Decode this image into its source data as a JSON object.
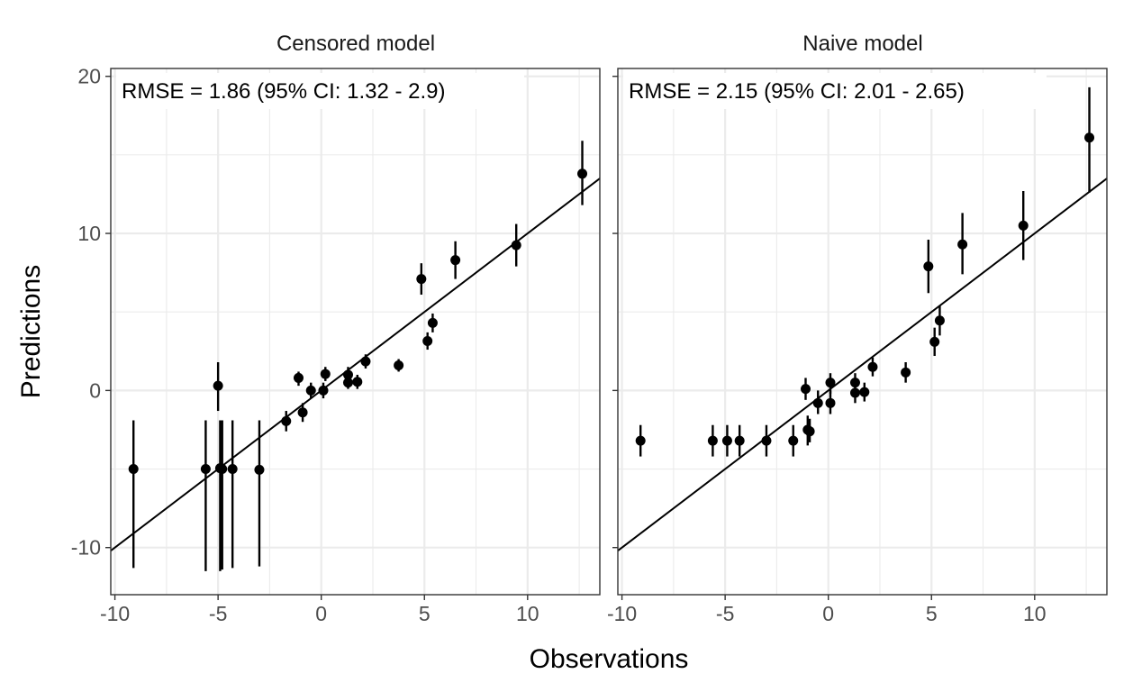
{
  "chart_data": {
    "type": "scatter",
    "xlabel": "Observations",
    "ylabel": "Predictions",
    "xlim": [
      -10.2,
      13.5
    ],
    "ylim": [
      -13,
      20.5
    ],
    "x_ticks": [
      -10,
      -5,
      0,
      5,
      10
    ],
    "y_ticks": [
      -10,
      0,
      10,
      20
    ],
    "x_tick_labels": [
      "-10",
      "-5",
      "0",
      "5",
      "10"
    ],
    "y_tick_labels": [
      "-10",
      "0",
      "10",
      "20"
    ],
    "grid": true,
    "reference_line": {
      "slope": 1,
      "intercept": 0
    },
    "panels": [
      {
        "title": "Censored model",
        "annotation": "RMSE = 1.86 (95% CI: 1.32 - 2.9)",
        "points": [
          {
            "x": -9.1,
            "y": -5.0,
            "lo": -11.3,
            "hi": -1.9
          },
          {
            "x": -5.6,
            "y": -5.0,
            "lo": -11.5,
            "hi": -1.9
          },
          {
            "x": -5.0,
            "y": 0.3,
            "lo": -1.3,
            "hi": 1.8
          },
          {
            "x": -4.9,
            "y": -4.95,
            "lo": -11.5,
            "hi": -1.9
          },
          {
            "x": -4.8,
            "y": -5.0,
            "lo": -11.4,
            "hi": -1.9
          },
          {
            "x": -4.3,
            "y": -5.0,
            "lo": -11.3,
            "hi": -1.9
          },
          {
            "x": -3.0,
            "y": -5.05,
            "lo": -11.2,
            "hi": -1.9
          },
          {
            "x": -1.7,
            "y": -1.95,
            "lo": -2.6,
            "hi": -1.3
          },
          {
            "x": -1.1,
            "y": 0.8,
            "lo": 0.3,
            "hi": 1.2
          },
          {
            "x": -0.9,
            "y": -1.4,
            "lo": -2.0,
            "hi": -0.8
          },
          {
            "x": -0.5,
            "y": 0.0,
            "lo": -0.5,
            "hi": 0.5
          },
          {
            "x": 0.1,
            "y": 0.0,
            "lo": -0.5,
            "hi": 0.5
          },
          {
            "x": 0.2,
            "y": 1.05,
            "lo": 0.6,
            "hi": 1.5
          },
          {
            "x": 1.3,
            "y": 1.0,
            "lo": 0.5,
            "hi": 1.5
          },
          {
            "x": 1.3,
            "y": 0.5,
            "lo": 0.1,
            "hi": 0.9
          },
          {
            "x": 1.75,
            "y": 0.55,
            "lo": 0.1,
            "hi": 1.0
          },
          {
            "x": 2.15,
            "y": 1.85,
            "lo": 1.4,
            "hi": 2.3
          },
          {
            "x": 3.75,
            "y": 1.6,
            "lo": 1.2,
            "hi": 2.0
          },
          {
            "x": 4.85,
            "y": 7.1,
            "lo": 6.1,
            "hi": 8.1
          },
          {
            "x": 5.15,
            "y": 3.15,
            "lo": 2.6,
            "hi": 3.7
          },
          {
            "x": 5.4,
            "y": 4.3,
            "lo": 3.7,
            "hi": 4.9
          },
          {
            "x": 6.5,
            "y": 8.3,
            "lo": 7.1,
            "hi": 9.5
          },
          {
            "x": 9.45,
            "y": 9.25,
            "lo": 7.9,
            "hi": 10.6
          },
          {
            "x": 12.65,
            "y": 13.8,
            "lo": 11.8,
            "hi": 15.9
          }
        ]
      },
      {
        "title": "Naive model",
        "annotation": "RMSE = 2.15 (95% CI: 2.01 - 2.65)",
        "points": [
          {
            "x": -9.1,
            "y": -3.2,
            "lo": -4.2,
            "hi": -2.2
          },
          {
            "x": -5.6,
            "y": -3.2,
            "lo": -4.2,
            "hi": -2.2
          },
          {
            "x": -4.9,
            "y": -3.2,
            "lo": -4.2,
            "hi": -2.2
          },
          {
            "x": -4.3,
            "y": -3.2,
            "lo": -4.2,
            "hi": -2.2
          },
          {
            "x": -3.0,
            "y": -3.2,
            "lo": -4.2,
            "hi": -2.2
          },
          {
            "x": -1.7,
            "y": -3.2,
            "lo": -4.2,
            "hi": -2.2
          },
          {
            "x": -1.0,
            "y": -2.5,
            "lo": -3.5,
            "hi": -1.6
          },
          {
            "x": -0.9,
            "y": -2.6,
            "lo": -3.3,
            "hi": -1.8
          },
          {
            "x": -1.1,
            "y": 0.1,
            "lo": -0.6,
            "hi": 0.8
          },
          {
            "x": -0.5,
            "y": -0.8,
            "lo": -1.5,
            "hi": 0.0
          },
          {
            "x": 0.1,
            "y": 0.5,
            "lo": -0.2,
            "hi": 1.1
          },
          {
            "x": 0.1,
            "y": -0.8,
            "lo": -1.5,
            "hi": 0.0
          },
          {
            "x": 1.3,
            "y": 0.5,
            "lo": -0.1,
            "hi": 1.1
          },
          {
            "x": 1.3,
            "y": -0.15,
            "lo": -0.8,
            "hi": 0.5
          },
          {
            "x": 1.75,
            "y": -0.1,
            "lo": -0.7,
            "hi": 0.5
          },
          {
            "x": 2.15,
            "y": 1.5,
            "lo": 0.9,
            "hi": 2.1
          },
          {
            "x": 3.75,
            "y": 1.15,
            "lo": 0.5,
            "hi": 1.8
          },
          {
            "x": 4.85,
            "y": 7.9,
            "lo": 6.2,
            "hi": 9.6
          },
          {
            "x": 5.15,
            "y": 3.1,
            "lo": 2.2,
            "hi": 4.0
          },
          {
            "x": 5.4,
            "y": 4.45,
            "lo": 3.5,
            "hi": 5.4
          },
          {
            "x": 6.5,
            "y": 9.3,
            "lo": 7.4,
            "hi": 11.3
          },
          {
            "x": 9.45,
            "y": 10.5,
            "lo": 8.3,
            "hi": 12.7
          },
          {
            "x": 12.65,
            "y": 16.1,
            "lo": 12.6,
            "hi": 19.3
          }
        ]
      }
    ]
  }
}
